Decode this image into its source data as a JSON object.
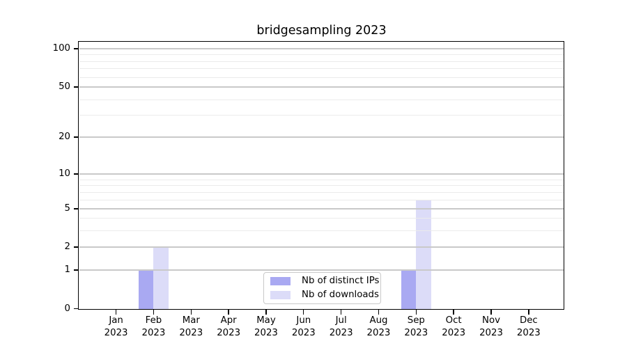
{
  "chart_data": {
    "type": "bar",
    "title": "bridgesampling 2023",
    "categories": [
      "Jan",
      "Feb",
      "Mar",
      "Apr",
      "May",
      "Jun",
      "Jul",
      "Aug",
      "Sep",
      "Oct",
      "Nov",
      "Dec"
    ],
    "year_label": "2023",
    "series": [
      {
        "name": "Nb of distinct IPs",
        "color": "#a9a9f2",
        "values": [
          0,
          1,
          0,
          0,
          0,
          0,
          0,
          0,
          1,
          0,
          0,
          0
        ]
      },
      {
        "name": "Nb of downloads",
        "color": "#dcdcf8",
        "values": [
          0,
          2,
          0,
          0,
          0,
          0,
          0,
          0,
          6,
          0,
          0,
          0
        ]
      }
    ],
    "xlabel": "",
    "ylabel": "",
    "y_axis": {
      "tick_values": [
        0,
        1,
        2,
        5,
        10,
        20,
        50,
        100
      ],
      "scale": "log-like (linear 0-1, logarithmic above 1)",
      "ylim": [
        0,
        113
      ]
    },
    "minor_gridlines": [
      3,
      4,
      6,
      7,
      8,
      9,
      30,
      40,
      60,
      70,
      80,
      90
    ],
    "grid": "horizontal major+minor, drawn over bars",
    "legend": {
      "position": "bottom-center"
    },
    "colors": {
      "axis": "#000000",
      "major_grid": "#c9c9c9",
      "minor_grid": "#ebebeb",
      "background": "#ffffff",
      "legend_border": "#c9c9c9"
    }
  }
}
